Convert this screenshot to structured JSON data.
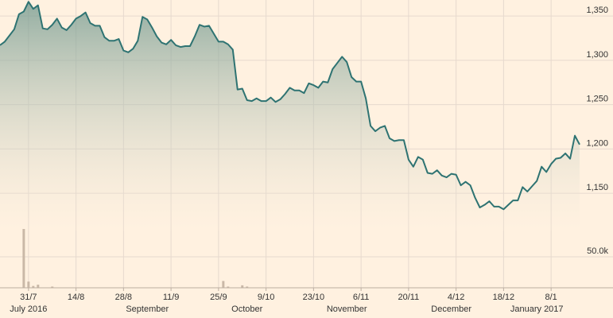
{
  "chart_data": {
    "type": "line",
    "title": "",
    "xlabel": "",
    "ylabel": "",
    "ylim": [
      1108,
      1368
    ],
    "y_ticks": [
      "1,150",
      "1,200",
      "1,250",
      "1,300",
      "1,350"
    ],
    "y_tick_values": [
      1150,
      1200,
      1250,
      1300,
      1350
    ],
    "volume_tick_label": "50.0k",
    "volume_tick_value": 50000,
    "volume_max": 95000,
    "x_ticks": [
      "31/7",
      "14/8",
      "28/8",
      "11/9",
      "25/9",
      "9/10",
      "23/10",
      "6/11",
      "20/11",
      "4/12",
      "18/12",
      "8/1"
    ],
    "x_tick_index": [
      6,
      16,
      26,
      36,
      46,
      56,
      66,
      76,
      86,
      96,
      106,
      116
    ],
    "months": [
      "July 2016",
      "September",
      "October",
      "November",
      "December",
      "January 2017"
    ],
    "month_index": [
      6,
      31,
      52,
      73,
      95,
      113
    ],
    "grid": true,
    "line_color": "#2e7372",
    "fill_color": "#8fada4",
    "volume_color": "#c9b8a7",
    "series": [
      {
        "values": [
          1317,
          1321,
          1328,
          1335,
          1352,
          1355,
          1366,
          1358,
          1362,
          1336,
          1335,
          1340,
          1347,
          1337,
          1334,
          1340,
          1347,
          1350,
          1354,
          1342,
          1339,
          1339,
          1326,
          1322,
          1322,
          1324,
          1311,
          1309,
          1313,
          1322,
          1349,
          1346,
          1337,
          1327,
          1320,
          1318,
          1323,
          1317,
          1315,
          1316,
          1316,
          1327,
          1340,
          1338,
          1339,
          1330,
          1321,
          1321,
          1318,
          1312,
          1267,
          1268,
          1255,
          1254,
          1257,
          1254,
          1254,
          1258,
          1253,
          1256,
          1262,
          1269,
          1266,
          1266,
          1263,
          1274,
          1272,
          1269,
          1276,
          1275,
          1290,
          1297,
          1304,
          1298,
          1281,
          1276,
          1276,
          1257,
          1226,
          1220,
          1224,
          1226,
          1212,
          1209,
          1210,
          1210,
          1188,
          1180,
          1191,
          1188,
          1173,
          1172,
          1176,
          1170,
          1168,
          1172,
          1171,
          1159,
          1163,
          1159,
          1145,
          1134,
          1137,
          1141,
          1135,
          1135,
          1132,
          1137,
          1142,
          1142,
          1157,
          1152,
          1158,
          1164,
          1180,
          1174,
          1183,
          1189,
          1190,
          1195,
          1189,
          1215,
          1205
        ],
        "volume": [
          0,
          0,
          0,
          0,
          0,
          95000,
          10000,
          3000,
          5000,
          0,
          0,
          2000,
          0,
          0,
          0,
          0,
          0,
          0,
          0,
          0,
          0,
          0,
          0,
          0,
          0,
          0,
          0,
          0,
          0,
          0,
          0,
          0,
          0,
          0,
          0,
          0,
          0,
          0,
          0,
          0,
          0,
          0,
          0,
          0,
          0,
          0,
          0,
          11000,
          2000,
          0,
          0,
          4000,
          2000,
          0,
          0,
          0,
          0,
          0,
          0,
          0,
          0,
          0,
          0,
          0,
          0,
          0,
          0,
          0,
          0,
          0,
          0,
          0,
          0,
          0,
          0,
          0,
          0,
          0,
          0,
          0,
          0,
          0,
          0,
          0,
          0,
          0,
          0,
          0,
          0,
          0,
          0,
          0,
          0,
          0,
          0,
          0,
          0,
          0,
          0,
          0,
          0,
          0,
          0,
          0,
          0,
          0,
          0,
          0,
          0,
          0,
          0,
          0,
          0,
          0,
          0,
          0,
          0,
          0,
          0,
          0,
          0,
          0,
          0,
          0,
          0
        ]
      }
    ]
  }
}
